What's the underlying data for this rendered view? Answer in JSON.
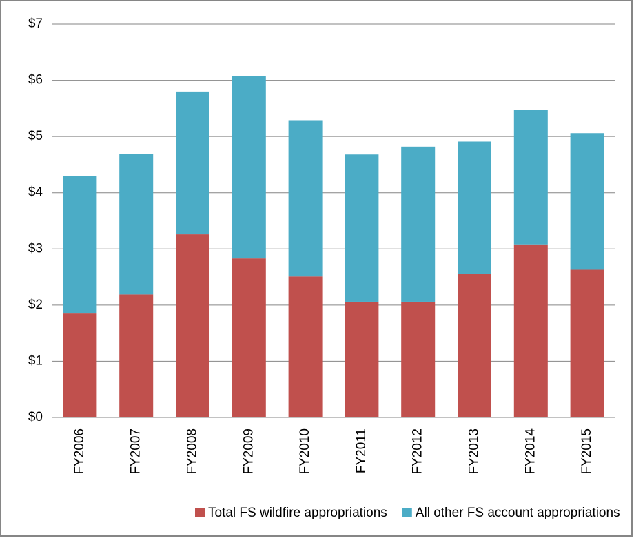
{
  "chart_data": {
    "type": "bar",
    "stacked": true,
    "categories": [
      "FY2006",
      "FY2007",
      "FY2008",
      "FY2009",
      "FY2010",
      "FY2011",
      "FY2012",
      "FY2013",
      "FY2014",
      "FY2015"
    ],
    "series": [
      {
        "name": "Total FS wildfire appropriations",
        "color": "#c0504d",
        "values": [
          1.85,
          2.19,
          3.26,
          2.83,
          2.51,
          2.06,
          2.06,
          2.55,
          3.08,
          2.63
        ]
      },
      {
        "name": "All other FS account appropriations",
        "color": "#4bacc6",
        "values": [
          2.45,
          2.5,
          2.54,
          3.25,
          2.78,
          2.62,
          2.76,
          2.36,
          2.39,
          2.43
        ]
      }
    ],
    "ylim": [
      0,
      7
    ],
    "yticks": [
      {
        "value": 0,
        "label": "$0"
      },
      {
        "value": 1,
        "label": "$1"
      },
      {
        "value": 2,
        "label": "$2"
      },
      {
        "value": 3,
        "label": "$3"
      },
      {
        "value": 4,
        "label": "$4"
      },
      {
        "value": 5,
        "label": "$5"
      },
      {
        "value": 6,
        "label": "$6"
      },
      {
        "value": 7,
        "label": "$7"
      }
    ],
    "grid": true,
    "legend": "bottom"
  }
}
